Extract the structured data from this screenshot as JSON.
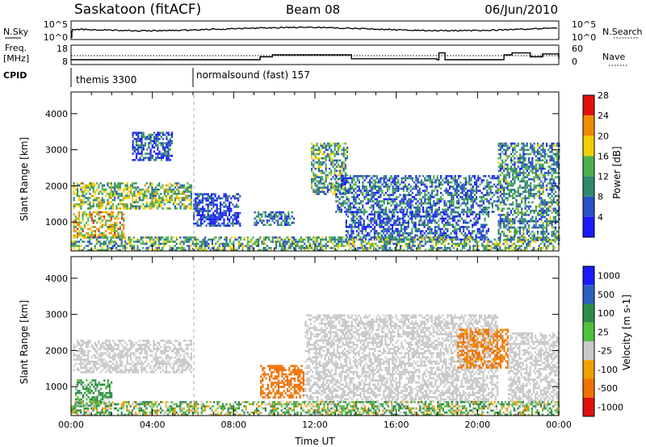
{
  "header": {
    "station": "Saskatoon (fitACF)",
    "beam": "Beam 08",
    "date": "06/Jun/2010"
  },
  "strips": {
    "nsky_label": "N.Sky",
    "nsky_ticks": [
      "10^5",
      "10^0"
    ],
    "nsearch_label": "N.Search",
    "nsearch_ticks": [
      "10^5",
      "10^0"
    ],
    "freq_label_1": "Freq.",
    "freq_label_2": "[MHz]",
    "freq_ticks": [
      "18",
      "8"
    ],
    "nave_label": "Nave",
    "nave_ticks": [
      "60",
      "0"
    ],
    "cpid_label": "CPID",
    "cpid_entries": [
      {
        "text": "themis 3300",
        "start_hour": 0
      },
      {
        "text": "normalsound (fast) 157",
        "start_hour": 6
      }
    ]
  },
  "chart_data": [
    {
      "type": "heatmap",
      "name": "power",
      "ylabel": "Slant Range [km]",
      "yticks": [
        1000,
        2000,
        3000,
        4000
      ],
      "ylim": [
        200,
        4600
      ],
      "xlim_hours": [
        0,
        24
      ],
      "colorbar_label": "Power [dB]",
      "colorbar_ticks": [
        "4",
        "8",
        "12",
        "16",
        "20",
        "24",
        "28"
      ],
      "colorbar_colors": [
        "#1a1aff",
        "#2a4fc8",
        "#2f8a6a",
        "#4fb04f",
        "#f0d000",
        "#f08a00",
        "#e01010"
      ],
      "echo_regions": [
        {
          "t0": 0.1,
          "t1": 5.9,
          "r0": 1400,
          "r1": 2100,
          "value": 16
        },
        {
          "t0": 0.1,
          "t1": 2.6,
          "r0": 600,
          "r1": 1300,
          "value": 20
        },
        {
          "t0": 3.0,
          "t1": 5.0,
          "r0": 2700,
          "r1": 3500,
          "value": 8
        },
        {
          "t0": 6.0,
          "t1": 8.3,
          "r0": 900,
          "r1": 1800,
          "value": 6
        },
        {
          "t0": 9.0,
          "t1": 11.0,
          "r0": 900,
          "r1": 1300,
          "value": 10
        },
        {
          "t0": 11.8,
          "t1": 13.6,
          "r0": 1800,
          "r1": 3200,
          "value": 14
        },
        {
          "t0": 13.0,
          "t1": 21.0,
          "r0": 1300,
          "r1": 2300,
          "value": 10
        },
        {
          "t0": 13.5,
          "t1": 20.5,
          "r0": 500,
          "r1": 1300,
          "value": 8
        },
        {
          "t0": 21.0,
          "t1": 24.0,
          "r0": 500,
          "r1": 3200,
          "value": 12
        },
        {
          "t0": 0.0,
          "t1": 24.0,
          "r0": 200,
          "r1": 600,
          "value": 14
        }
      ]
    },
    {
      "type": "heatmap",
      "name": "velocity",
      "ylabel": "Slant Range [km]",
      "yticks": [
        1000,
        2000,
        3000,
        4000
      ],
      "ylim": [
        200,
        4600
      ],
      "xlim_hours": [
        0,
        24
      ],
      "xticks": [
        "00:00",
        "04:00",
        "08:00",
        "12:00",
        "16:00",
        "20:00",
        "00:00"
      ],
      "xlabel": "Time UT",
      "colorbar_label": "Velocity [m s-1]",
      "colorbar_ticks": [
        "1000",
        "500",
        "100",
        "25",
        "-25",
        "-100",
        "-500",
        "-1000"
      ],
      "colorbar_colors": [
        "#1a1aff",
        "#2a60c0",
        "#2f8a4a",
        "#50c040",
        "#c8c8c8",
        "#f0a000",
        "#f07000",
        "#e01010"
      ],
      "echo_regions": [
        {
          "t0": 0.1,
          "t1": 5.9,
          "r0": 1400,
          "r1": 2300,
          "value": 0
        },
        {
          "t0": 0.2,
          "t1": 2.0,
          "r0": 500,
          "r1": 1200,
          "value": 150
        },
        {
          "t0": 9.3,
          "t1": 11.4,
          "r0": 700,
          "r1": 1600,
          "value": -300
        },
        {
          "t0": 11.5,
          "t1": 21.0,
          "r0": 600,
          "r1": 3000,
          "value": 0
        },
        {
          "t0": 19.0,
          "t1": 21.5,
          "r0": 1500,
          "r1": 2600,
          "value": -200
        },
        {
          "t0": 21.5,
          "t1": 24.0,
          "r0": 500,
          "r1": 2500,
          "value": 0
        },
        {
          "t0": 0.0,
          "t1": 24.0,
          "r0": 200,
          "r1": 600,
          "value": 60
        }
      ]
    }
  ]
}
